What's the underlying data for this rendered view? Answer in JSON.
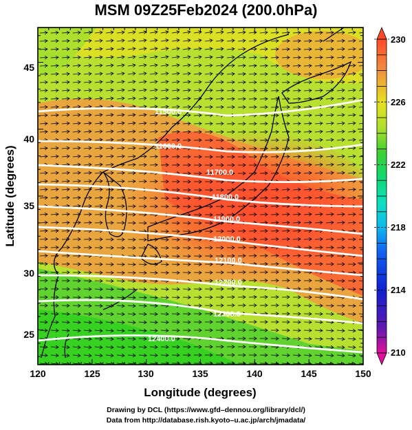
{
  "title": "MSM 09Z25Feb2024 (200.0hPa)",
  "axes": {
    "xlabel": "Longitude (degrees)",
    "ylabel": "Latitude  (degrees)",
    "xlim": [
      120,
      150
    ],
    "ylim": [
      22.4,
      47.6
    ],
    "xticks": [
      "120",
      "125",
      "130",
      "135",
      "140",
      "145",
      "150"
    ],
    "yticks": [
      "25",
      "30",
      "35",
      "40",
      "45"
    ]
  },
  "colorbar": {
    "min": 210,
    "max": 230,
    "ticks": [
      "230",
      "226",
      "222",
      "218",
      "214",
      "210"
    ],
    "colors": [
      "#e0109c",
      "#5a18b0",
      "#1020d0",
      "#1060f0",
      "#10b4f0",
      "#10e0c0",
      "#10d880",
      "#30d030",
      "#a0e030",
      "#e8e820",
      "#f0a040",
      "#ff5030"
    ]
  },
  "contours": {
    "labels": [
      "11500.0",
      "11600.0",
      "11700.0",
      "11800.0",
      "11900.0",
      "12000.0",
      "12100.0",
      "12200.0",
      "12300.0",
      "12400.0"
    ]
  },
  "credits": {
    "line1": "Drawing by DCL (https://www.gfd–dennou.org/library/dcl/)",
    "line2": "Data from http://database.rish.kyoto–u.ac.jp/arch/jmadata/"
  }
}
